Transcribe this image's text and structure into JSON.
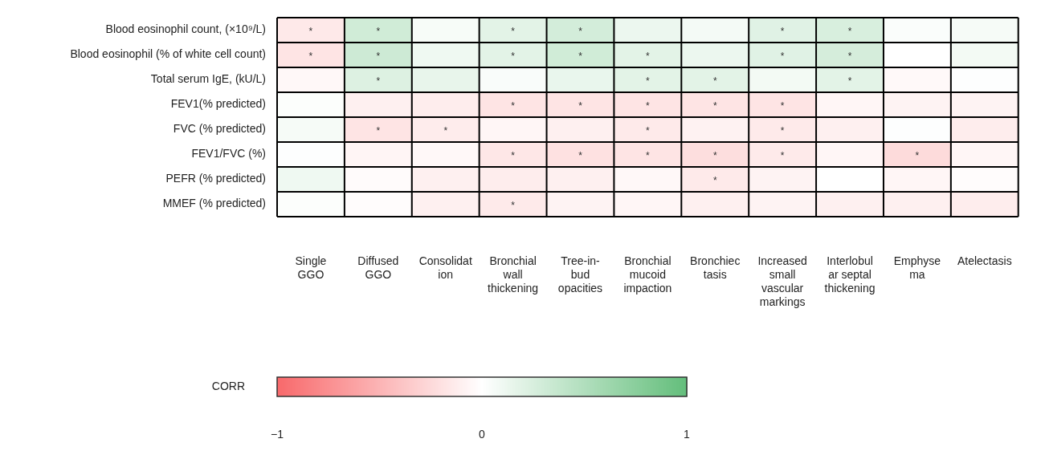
{
  "chart_data": {
    "type": "heatmap",
    "categories": [
      "Single\nGGO",
      "Diffused\nGGO",
      "Consolidat\nion",
      "Bronchial\nwall\nthickening",
      "Tree-in-\nbud\nopacities",
      "Bronchial\nmucoid\nimpaction",
      "Bronchiec\ntasis",
      "Increased\nsmall\nvascular\nmarkings",
      "Interlobul\nar septal\nthickening",
      "Emphyse\nma",
      "Atelectasis"
    ],
    "y_categories": [
      "Blood eosinophil count, (×10⁹/L)",
      "Blood eosinophil (% of white cell count)",
      "Total serum IgE, (kU/L)",
      "FEV1(% predicted)",
      "FVC (% predicted)",
      "FEV1/FVC (%)",
      "PEFR (% predicted)",
      "MMEF (% predicted)"
    ],
    "cells": [
      [
        -0.15,
        0.3,
        0.05,
        0.18,
        0.28,
        0.12,
        0.07,
        0.2,
        0.25,
        0.03,
        0.06
      ],
      [
        -0.18,
        0.32,
        0.1,
        0.18,
        0.3,
        0.18,
        0.12,
        0.2,
        0.27,
        0.0,
        0.08
      ],
      [
        -0.05,
        0.22,
        0.15,
        0.04,
        0.14,
        0.18,
        0.18,
        0.08,
        0.18,
        -0.04,
        0.01
      ],
      [
        0.02,
        -0.1,
        -0.12,
        -0.18,
        -0.18,
        -0.18,
        -0.18,
        -0.18,
        -0.06,
        -0.08,
        -0.08
      ],
      [
        0.06,
        -0.18,
        -0.13,
        -0.06,
        -0.1,
        -0.14,
        -0.09,
        -0.14,
        -0.1,
        0.01,
        -0.12
      ],
      [
        0.01,
        -0.07,
        -0.05,
        -0.16,
        -0.2,
        -0.18,
        -0.22,
        -0.14,
        -0.06,
        -0.24,
        -0.06
      ],
      [
        0.1,
        -0.03,
        -0.1,
        -0.12,
        -0.1,
        -0.05,
        -0.14,
        -0.08,
        0.0,
        -0.06,
        -0.02
      ],
      [
        0.02,
        -0.02,
        -0.1,
        -0.14,
        -0.08,
        -0.06,
        -0.1,
        -0.08,
        -0.1,
        -0.1,
        -0.12
      ]
    ],
    "cell_labels": [
      [
        "*",
        "*",
        null,
        "*",
        "*",
        null,
        null,
        "*",
        "*",
        null,
        null
      ],
      [
        "*",
        "*",
        null,
        "*",
        "*",
        "*",
        null,
        "*",
        "*",
        null,
        null
      ],
      [
        null,
        "*",
        null,
        null,
        null,
        "*",
        "*",
        null,
        "*",
        null,
        null
      ],
      [
        null,
        null,
        null,
        "*",
        "*",
        "*",
        "*",
        "*",
        null,
        null,
        null
      ],
      [
        null,
        "*",
        "*",
        null,
        null,
        "*",
        null,
        "*",
        null,
        null,
        null
      ],
      [
        null,
        null,
        null,
        "*",
        "*",
        "*",
        "*",
        "*",
        null,
        "*",
        null
      ],
      [
        null,
        null,
        null,
        null,
        null,
        null,
        "*",
        null,
        null,
        null,
        null
      ],
      [
        null,
        null,
        null,
        "*",
        null,
        null,
        null,
        null,
        null,
        null,
        null
      ]
    ],
    "clabel": "CORR",
    "clim": [
      -1,
      1
    ],
    "cticks": [
      {
        "value": -1,
        "label": "−1"
      },
      0,
      1
    ]
  }
}
